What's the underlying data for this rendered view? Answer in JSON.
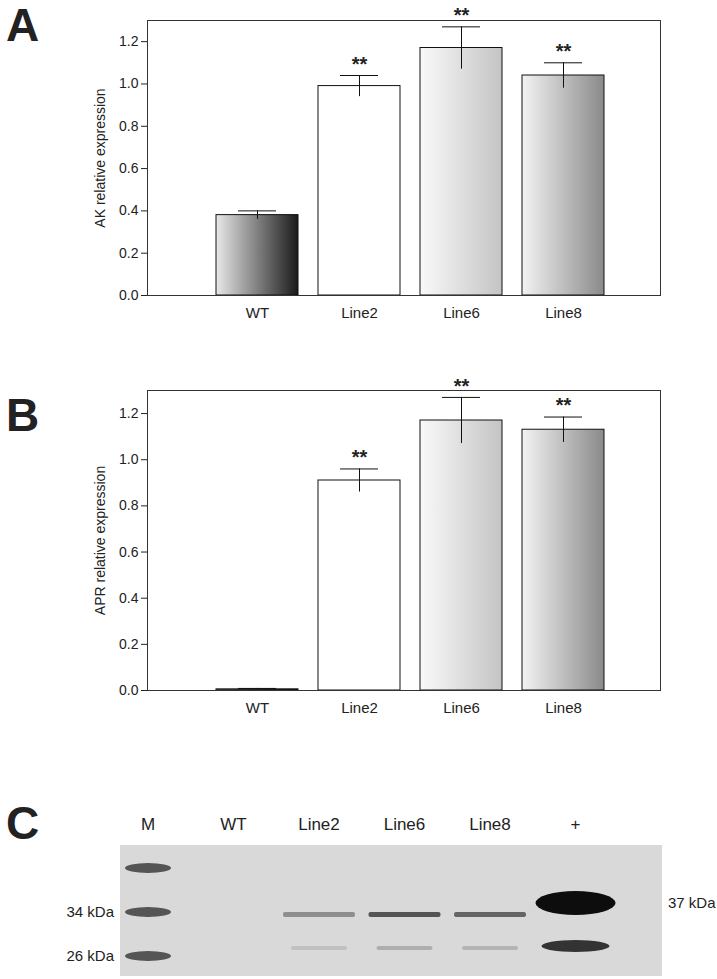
{
  "chart_data": [
    {
      "type": "bar",
      "panel": "A",
      "y_label": "AK relative expression",
      "categories": [
        "WT",
        "Line2",
        "Line6",
        "Line8"
      ],
      "values": [
        0.38,
        0.99,
        1.17,
        1.04
      ],
      "errors": [
        0.02,
        0.05,
        0.1,
        0.06
      ],
      "annotations": [
        null,
        "**",
        "**",
        "**"
      ],
      "colors": [
        "#1a1a1a",
        "#ffffff",
        "#c4c4c4",
        "#8a8a8a"
      ],
      "ylim": [
        0,
        1.3
      ],
      "yticks": [
        {
          "value": 0,
          "label": "0.0"
        },
        0.2,
        0.4,
        0.6,
        0.8,
        {
          "value": 1,
          "label": "1.0"
        },
        1.2
      ]
    },
    {
      "type": "bar",
      "panel": "B",
      "y_label": "APR relative expression",
      "categories": [
        "WT",
        "Line2",
        "Line6",
        "Line8"
      ],
      "values": [
        0.005,
        0.91,
        1.17,
        1.13
      ],
      "errors": [
        0.004,
        0.05,
        0.1,
        0.055
      ],
      "annotations": [
        null,
        "**",
        "**",
        "**"
      ],
      "colors": [
        "#1a1a1a",
        "#ffffff",
        "#c4c4c4",
        "#8a8a8a"
      ],
      "ylim": [
        0,
        1.3
      ],
      "yticks": [
        {
          "value": 0,
          "label": "0.0"
        },
        0.2,
        0.4,
        0.6,
        0.8,
        {
          "value": 1,
          "label": "1.0"
        },
        1.2
      ]
    }
  ],
  "blot": {
    "panel": "C",
    "lanes": [
      "M",
      "WT",
      "Line2",
      "Line6",
      "Line8",
      "+"
    ],
    "marker_labels": [
      "34 kDa",
      "26 kDa"
    ],
    "band_label": "37 kDa"
  }
}
